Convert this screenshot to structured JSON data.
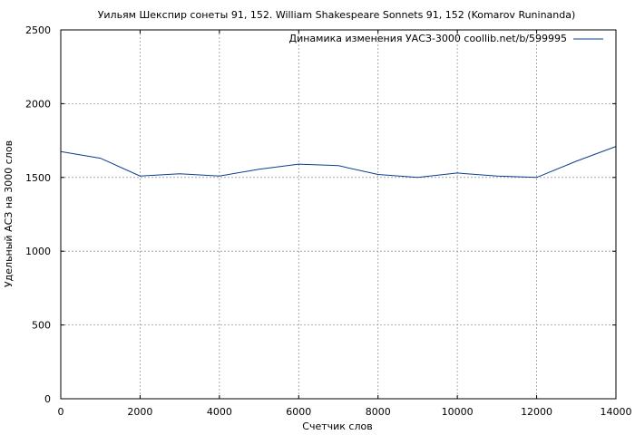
{
  "chart_data": {
    "type": "line",
    "title": "Уильям Шекспир сонеты 91, 152. William Shakespeare Sonnets 91, 152 (Komarov Runinanda)",
    "xlabel": "Счетчик слов",
    "ylabel": "Удельный АСЗ на 3000 слов",
    "xlim": [
      0,
      14000
    ],
    "ylim": [
      0,
      2500
    ],
    "xticks": [
      0,
      2000,
      4000,
      6000,
      8000,
      10000,
      12000,
      14000
    ],
    "yticks": [
      0,
      500,
      1000,
      1500,
      2000,
      2500
    ],
    "grid": true,
    "legend_position": "top-right",
    "series": [
      {
        "name": "Динамика изменения УАСЗ-3000 coollib.net/b/599995",
        "color": "#0b3d91",
        "x": [
          0,
          1000,
          2000,
          3000,
          4000,
          5000,
          6000,
          7000,
          8000,
          9000,
          10000,
          11000,
          12000,
          13000,
          14000
        ],
        "y": [
          1675,
          1630,
          1510,
          1525,
          1510,
          1555,
          1590,
          1580,
          1520,
          1500,
          1530,
          1510,
          1500,
          1610,
          1710
        ]
      }
    ]
  }
}
